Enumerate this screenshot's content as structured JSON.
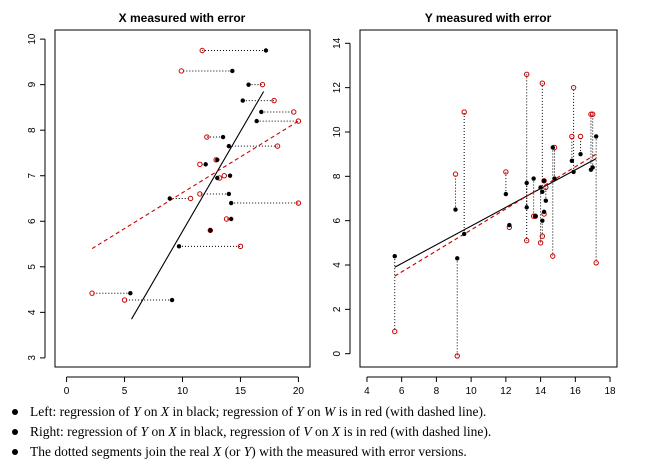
{
  "chart_data": [
    {
      "type": "scatter",
      "title": "X measured with error",
      "xlim": [
        -1,
        21
      ],
      "ylim": [
        2.8,
        10.2
      ],
      "xticks": [
        0,
        5,
        10,
        15,
        20
      ],
      "yticks": [
        3,
        4,
        5,
        6,
        7,
        8,
        9,
        10
      ],
      "true_x": [
        17.2,
        14.3,
        15.7,
        16.8,
        15.2,
        16.4,
        13.5,
        14.0,
        13.0,
        12.0,
        14.1,
        13.0,
        14.2,
        12.4,
        14.2,
        9.7,
        5.5,
        9.1,
        8.9,
        14.0
      ],
      "measured_x": [
        11.7,
        9.9,
        16.9,
        19.6,
        17.9,
        20.0,
        12.1,
        18.2,
        12.9,
        11.5,
        13.6,
        13.2,
        20.0,
        12.4,
        13.8,
        15.0,
        2.2,
        5.0,
        10.7,
        11.5
      ],
      "y": [
        9.75,
        9.3,
        9.0,
        8.4,
        8.65,
        8.2,
        7.85,
        7.65,
        7.35,
        7.25,
        7.0,
        6.95,
        6.4,
        5.8,
        6.05,
        5.45,
        4.42,
        4.27,
        6.5,
        6.6
      ],
      "fit_true": {
        "x": [
          5.6,
          17.0
        ],
        "y": [
          3.85,
          8.85
        ]
      },
      "fit_measured": {
        "x": [
          2.2,
          20.0
        ],
        "y": [
          5.4,
          8.2
        ]
      }
    },
    {
      "type": "scatter",
      "title": "Y measured with error",
      "xlim": [
        3.6,
        18.4
      ],
      "ylim": [
        -0.6,
        14.6
      ],
      "xticks": [
        4,
        6,
        8,
        10,
        12,
        14,
        16,
        18
      ],
      "yticks": [
        0,
        2,
        4,
        6,
        8,
        10,
        12,
        14
      ],
      "x": [
        5.6,
        9.2,
        9.1,
        9.6,
        12.0,
        12.2,
        13.2,
        13.2,
        13.6,
        14.0,
        14.1,
        14.1,
        14.2,
        14.3,
        14.8,
        14.7,
        15.8,
        15.9,
        16.3,
        16.9,
        17.2,
        17.0,
        14.2,
        13.7
      ],
      "true_y": [
        4.4,
        4.3,
        6.5,
        5.4,
        7.2,
        5.8,
        7.7,
        6.6,
        7.9,
        7.5,
        7.3,
        6.0,
        6.4,
        6.9,
        7.9,
        9.3,
        8.7,
        8.2,
        9.0,
        8.3,
        9.8,
        8.4,
        7.8,
        6.2
      ],
      "measured_y": [
        1.0,
        -0.1,
        8.1,
        10.9,
        8.2,
        5.7,
        5.1,
        12.6,
        6.2,
        5.0,
        12.2,
        5.3,
        6.3,
        7.5,
        9.3,
        4.4,
        9.8,
        12.0,
        9.8,
        10.8,
        4.1,
        10.8,
        7.8,
        6.2
      ],
      "fit_true": {
        "x": [
          5.6,
          17.2
        ],
        "y": [
          3.9,
          8.8
        ]
      },
      "fit_measured": {
        "x": [
          5.6,
          17.2
        ],
        "y": [
          3.5,
          9.0
        ]
      }
    }
  ],
  "notes": [
    {
      "lead": "Left:  regression of ",
      "a": "Y",
      "b": " on ",
      "c": "X",
      "d": " in black; regression of ",
      "e": "Y",
      "f": " on ",
      "g": "W",
      "h": " is in red (with dashed line)."
    },
    {
      "lead": "Right: regression of ",
      "a": "Y",
      "b": " on ",
      "c": "X",
      "d": " in black, regression of ",
      "e": "V",
      "f": " on ",
      "g": "X",
      "h": " is in red (with dashed line)."
    },
    {
      "lead": "The dotted segments join the real ",
      "a": "X",
      "b": " (or ",
      "c": "Y",
      "d": ") with the measured with error versions.",
      "e": "",
      "f": "",
      "g": "",
      "h": ""
    }
  ],
  "colors": {
    "true": "#000000",
    "measured": "#cc0000",
    "dotted": "#000000"
  }
}
